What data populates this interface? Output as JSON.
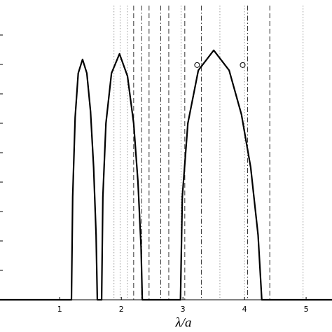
{
  "chart_data": {
    "type": "line",
    "xlabel": "λ/a",
    "xlim": [
      0.03,
      5.42
    ],
    "ylim": [
      0,
      1
    ],
    "xticks": [
      1,
      2,
      3,
      4,
      5
    ],
    "yticks": [
      0.1,
      0.2,
      0.3,
      0.4,
      0.5,
      0.6,
      0.7,
      0.8,
      0.9
    ],
    "series": [
      {
        "color": "#000000",
        "x": [
          0.03,
          1.19,
          1.21,
          1.25,
          1.3,
          1.37,
          1.44,
          1.5,
          1.55,
          1.59,
          1.61,
          1.68,
          1.7,
          1.75,
          1.84,
          1.97,
          2.1,
          2.2,
          2.27,
          2.32,
          2.34,
          2.96,
          2.99,
          3.08,
          3.25,
          3.5,
          3.75,
          3.95,
          4.1,
          4.22,
          4.28,
          5.42
        ],
        "values": [
          0,
          0,
          0.35,
          0.62,
          0.77,
          0.817,
          0.77,
          0.64,
          0.45,
          0.22,
          0,
          0,
          0.35,
          0.6,
          0.77,
          0.836,
          0.76,
          0.6,
          0.4,
          0.18,
          0,
          0,
          0.35,
          0.6,
          0.78,
          0.848,
          0.78,
          0.63,
          0.45,
          0.22,
          0,
          0
        ]
      }
    ],
    "markers": {
      "marker": "circle",
      "x": [
        3.23,
        3.97
      ],
      "values": [
        0.798,
        0.798
      ]
    },
    "vlines": [
      {
        "x": 1.88,
        "style": "dotted"
      },
      {
        "x": 1.98,
        "style": "dotted"
      },
      {
        "x": 2.1,
        "style": "dotted"
      },
      {
        "x": 2.2,
        "style": "dashed"
      },
      {
        "x": 2.33,
        "style": "dashdot"
      },
      {
        "x": 2.45,
        "style": "dashed"
      },
      {
        "x": 2.64,
        "style": "dashdot"
      },
      {
        "x": 2.77,
        "style": "dashed"
      },
      {
        "x": 2.97,
        "style": "dotted"
      },
      {
        "x": 3.03,
        "style": "dashed"
      },
      {
        "x": 3.3,
        "style": "dashdot"
      },
      {
        "x": 3.6,
        "style": "dotted"
      },
      {
        "x": 4.0,
        "style": "dotted"
      },
      {
        "x": 4.05,
        "style": "dashdot"
      },
      {
        "x": 4.41,
        "style": "dashed"
      },
      {
        "x": 4.95,
        "style": "dotted"
      }
    ]
  }
}
